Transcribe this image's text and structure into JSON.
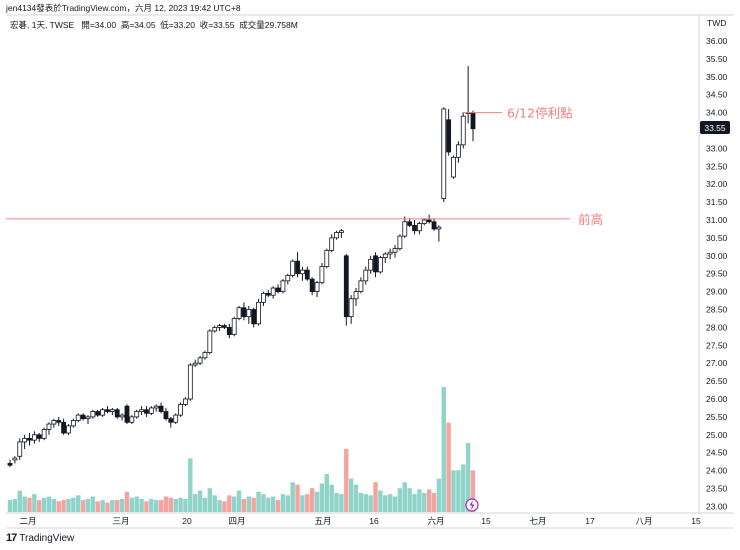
{
  "header": {
    "text": "jen4134發表於TradingView.com，六月 12, 2023 19:42 UTC+8"
  },
  "symbol": {
    "name": "宏碁, 1天, TWSE",
    "open": "開=34.00",
    "high": "高=34.05",
    "low": "低=33.20",
    "close": "收=33.55",
    "volume": "成交量29.758M"
  },
  "footer": {
    "logo": "17",
    "brand": "TradingView"
  },
  "colors": {
    "up": "#26a69a",
    "down": "#ef5350",
    "candle_up_fill": "#ffffff",
    "candle_down_fill": "#131722",
    "hline": "#f08080",
    "annot": "#f48080"
  },
  "chart_data": {
    "type": "candlestick",
    "currency": "TWD",
    "ylim": [
      22.9,
      36.4
    ],
    "y_ticks": [
      "36.00",
      "35.50",
      "35.00",
      "34.50",
      "34.00",
      "33.50",
      "33.00",
      "32.50",
      "32.00",
      "31.50",
      "31.00",
      "30.50",
      "30.00",
      "29.50",
      "29.00",
      "28.50",
      "28.00",
      "27.50",
      "27.00",
      "26.50",
      "26.00",
      "25.50",
      "25.00",
      "24.50",
      "24.00",
      "23.50",
      "23.00"
    ],
    "x_ticks": [
      "二月",
      "三月",
      "20",
      "四月",
      "五月",
      "16",
      "六月",
      "15",
      "七月",
      "17",
      "八月",
      "15"
    ],
    "last_price": "33.55",
    "annotations": [
      {
        "text": "6/12停利點",
        "price": 34.0
      },
      {
        "text": "前高",
        "price": 31.03
      }
    ],
    "hline": 31.03,
    "candles": [
      [
        24.2,
        24.3,
        24.1,
        24.15
      ],
      [
        24.3,
        24.4,
        24.2,
        24.35
      ],
      [
        24.4,
        24.9,
        24.3,
        24.8
      ],
      [
        24.8,
        25.0,
        24.6,
        24.9
      ],
      [
        24.9,
        25.05,
        24.7,
        24.85
      ],
      [
        24.85,
        25.1,
        24.75,
        25.0
      ],
      [
        25.0,
        25.05,
        24.8,
        24.9
      ],
      [
        24.9,
        25.2,
        24.85,
        25.15
      ],
      [
        25.15,
        25.35,
        25.0,
        25.3
      ],
      [
        25.3,
        25.45,
        25.2,
        25.4
      ],
      [
        25.4,
        25.5,
        25.25,
        25.35
      ],
      [
        25.35,
        25.45,
        25.0,
        25.05
      ],
      [
        25.05,
        25.3,
        25.0,
        25.25
      ],
      [
        25.25,
        25.45,
        25.2,
        25.4
      ],
      [
        25.4,
        25.6,
        25.35,
        25.55
      ],
      [
        25.55,
        25.6,
        25.4,
        25.45
      ],
      [
        25.45,
        25.55,
        25.3,
        25.5
      ],
      [
        25.5,
        25.7,
        25.45,
        25.65
      ],
      [
        25.65,
        25.7,
        25.5,
        25.55
      ],
      [
        25.55,
        25.75,
        25.5,
        25.7
      ],
      [
        25.7,
        25.8,
        25.6,
        25.65
      ],
      [
        25.65,
        25.75,
        25.55,
        25.7
      ],
      [
        25.7,
        25.75,
        25.45,
        25.5
      ],
      [
        25.5,
        25.6,
        25.4,
        25.55
      ],
      [
        25.8,
        25.85,
        25.3,
        25.35
      ],
      [
        25.35,
        25.55,
        25.3,
        25.5
      ],
      [
        25.5,
        25.7,
        25.45,
        25.65
      ],
      [
        25.65,
        25.8,
        25.55,
        25.7
      ],
      [
        25.7,
        25.8,
        25.5,
        25.6
      ],
      [
        25.6,
        25.8,
        25.55,
        25.75
      ],
      [
        25.75,
        25.85,
        25.65,
        25.8
      ],
      [
        25.8,
        25.9,
        25.6,
        25.65
      ],
      [
        25.65,
        25.75,
        25.4,
        25.45
      ],
      [
        25.45,
        25.5,
        25.2,
        25.35
      ],
      [
        25.35,
        25.6,
        25.3,
        25.55
      ],
      [
        25.55,
        25.9,
        25.5,
        25.85
      ],
      [
        25.85,
        26.05,
        25.8,
        26.0
      ],
      [
        26.0,
        27.0,
        25.95,
        26.95
      ],
      [
        26.95,
        27.1,
        26.9,
        27.0
      ],
      [
        27.0,
        27.2,
        26.95,
        27.15
      ],
      [
        27.15,
        27.35,
        27.1,
        27.3
      ],
      [
        27.3,
        27.95,
        27.25,
        27.9
      ],
      [
        27.9,
        28.05,
        27.85,
        28.0
      ],
      [
        28.0,
        28.1,
        27.9,
        28.05
      ],
      [
        28.05,
        28.1,
        27.95,
        28.0
      ],
      [
        28.0,
        28.1,
        27.7,
        27.8
      ],
      [
        27.8,
        28.3,
        27.75,
        28.25
      ],
      [
        28.25,
        28.6,
        28.2,
        28.55
      ],
      [
        28.55,
        28.7,
        28.2,
        28.3
      ],
      [
        28.3,
        28.6,
        28.1,
        28.5
      ],
      [
        28.5,
        28.55,
        28.0,
        28.1
      ],
      [
        28.1,
        28.8,
        28.05,
        28.7
      ],
      [
        28.7,
        29.0,
        28.6,
        28.95
      ],
      [
        28.95,
        29.05,
        28.85,
        28.9
      ],
      [
        28.9,
        29.15,
        28.8,
        29.1
      ],
      [
        29.1,
        29.2,
        28.95,
        29.0
      ],
      [
        29.0,
        29.35,
        28.95,
        29.3
      ],
      [
        29.3,
        29.5,
        29.2,
        29.45
      ],
      [
        29.45,
        29.9,
        29.4,
        29.85
      ],
      [
        29.85,
        30.1,
        29.4,
        29.5
      ],
      [
        29.5,
        29.7,
        29.3,
        29.6
      ],
      [
        29.6,
        29.7,
        29.3,
        29.35
      ],
      [
        29.35,
        29.4,
        28.9,
        29.0
      ],
      [
        29.0,
        29.3,
        28.85,
        29.25
      ],
      [
        29.25,
        29.8,
        29.2,
        29.7
      ],
      [
        29.7,
        30.2,
        29.65,
        30.15
      ],
      [
        30.15,
        30.6,
        30.1,
        30.5
      ],
      [
        30.5,
        30.7,
        30.45,
        30.65
      ],
      [
        30.65,
        30.75,
        30.5,
        30.7
      ],
      [
        30.0,
        30.05,
        28.05,
        28.3
      ],
      [
        28.3,
        28.9,
        28.1,
        28.8
      ],
      [
        28.8,
        29.1,
        28.6,
        29.0
      ],
      [
        29.0,
        29.4,
        28.95,
        29.3
      ],
      [
        29.3,
        29.7,
        29.2,
        29.6
      ],
      [
        29.6,
        30.0,
        29.5,
        29.9
      ],
      [
        30.0,
        30.1,
        29.4,
        29.55
      ],
      [
        29.55,
        30.0,
        29.5,
        29.95
      ],
      [
        29.95,
        30.1,
        29.8,
        30.05
      ],
      [
        30.05,
        30.2,
        29.9,
        30.1
      ],
      [
        30.1,
        30.3,
        29.95,
        30.2
      ],
      [
        30.2,
        30.6,
        30.15,
        30.55
      ],
      [
        30.55,
        31.1,
        30.5,
        30.95
      ],
      [
        30.95,
        31.05,
        30.8,
        30.85
      ],
      [
        30.85,
        31.0,
        30.6,
        30.7
      ],
      [
        30.7,
        30.95,
        30.6,
        30.9
      ],
      [
        30.9,
        31.05,
        30.85,
        31.0
      ],
      [
        31.0,
        31.15,
        30.9,
        30.95
      ],
      [
        30.95,
        31.05,
        30.7,
        30.75
      ],
      [
        30.75,
        30.85,
        30.4,
        30.8
      ],
      [
        31.6,
        34.15,
        31.5,
        34.1
      ],
      [
        33.8,
        34.1,
        32.8,
        32.9
      ],
      [
        32.2,
        32.8,
        32.15,
        32.75
      ],
      [
        32.75,
        33.2,
        32.6,
        33.1
      ],
      [
        33.1,
        34.0,
        33.0,
        33.9
      ],
      [
        34.0,
        35.3,
        33.7,
        34.0
      ],
      [
        34.0,
        34.05,
        33.2,
        33.55
      ]
    ],
    "volume": [
      [
        1.0,
        "up"
      ],
      [
        1.1,
        "up"
      ],
      [
        1.8,
        "up"
      ],
      [
        1.3,
        "up"
      ],
      [
        1.2,
        "down"
      ],
      [
        1.5,
        "up"
      ],
      [
        1.0,
        "down"
      ],
      [
        1.2,
        "up"
      ],
      [
        1.3,
        "up"
      ],
      [
        1.1,
        "up"
      ],
      [
        0.9,
        "down"
      ],
      [
        1.0,
        "down"
      ],
      [
        1.1,
        "up"
      ],
      [
        1.2,
        "up"
      ],
      [
        1.4,
        "up"
      ],
      [
        1.0,
        "down"
      ],
      [
        1.1,
        "up"
      ],
      [
        1.3,
        "up"
      ],
      [
        0.9,
        "down"
      ],
      [
        1.0,
        "up"
      ],
      [
        0.8,
        "down"
      ],
      [
        1.0,
        "up"
      ],
      [
        1.0,
        "down"
      ],
      [
        1.1,
        "up"
      ],
      [
        1.7,
        "down"
      ],
      [
        1.2,
        "up"
      ],
      [
        1.3,
        "up"
      ],
      [
        1.1,
        "up"
      ],
      [
        0.9,
        "down"
      ],
      [
        1.1,
        "up"
      ],
      [
        1.0,
        "up"
      ],
      [
        1.0,
        "down"
      ],
      [
        1.3,
        "down"
      ],
      [
        1.2,
        "down"
      ],
      [
        1.1,
        "up"
      ],
      [
        1.2,
        "up"
      ],
      [
        1.1,
        "up"
      ],
      [
        4.5,
        "up"
      ],
      [
        1.5,
        "up"
      ],
      [
        1.8,
        "up"
      ],
      [
        1.2,
        "up"
      ],
      [
        2.0,
        "up"
      ],
      [
        1.4,
        "up"
      ],
      [
        1.0,
        "up"
      ],
      [
        0.9,
        "down"
      ],
      [
        1.4,
        "down"
      ],
      [
        1.3,
        "up"
      ],
      [
        1.8,
        "up"
      ],
      [
        1.1,
        "down"
      ],
      [
        1.3,
        "up"
      ],
      [
        1.2,
        "down"
      ],
      [
        1.7,
        "up"
      ],
      [
        1.5,
        "up"
      ],
      [
        1.2,
        "up"
      ],
      [
        1.3,
        "up"
      ],
      [
        1.0,
        "down"
      ],
      [
        1.5,
        "up"
      ],
      [
        1.4,
        "up"
      ],
      [
        2.5,
        "up"
      ],
      [
        2.3,
        "down"
      ],
      [
        1.4,
        "up"
      ],
      [
        1.5,
        "down"
      ],
      [
        2.0,
        "down"
      ],
      [
        1.7,
        "up"
      ],
      [
        2.4,
        "up"
      ],
      [
        3.2,
        "up"
      ],
      [
        2.3,
        "up"
      ],
      [
        1.6,
        "up"
      ],
      [
        1.5,
        "up"
      ],
      [
        5.3,
        "down"
      ],
      [
        2.8,
        "up"
      ],
      [
        2.3,
        "up"
      ],
      [
        1.6,
        "up"
      ],
      [
        1.5,
        "up"
      ],
      [
        1.4,
        "up"
      ],
      [
        2.5,
        "down"
      ],
      [
        1.8,
        "up"
      ],
      [
        1.4,
        "up"
      ],
      [
        1.5,
        "up"
      ],
      [
        1.3,
        "up"
      ],
      [
        2.0,
        "up"
      ],
      [
        2.5,
        "up"
      ],
      [
        2.0,
        "up"
      ],
      [
        1.5,
        "up"
      ],
      [
        1.9,
        "up"
      ],
      [
        1.6,
        "up"
      ],
      [
        1.9,
        "down"
      ],
      [
        1.6,
        "down"
      ],
      [
        2.8,
        "up"
      ],
      [
        10.5,
        "up"
      ],
      [
        7.5,
        "down"
      ],
      [
        3.5,
        "up"
      ],
      [
        3.5,
        "up"
      ],
      [
        4.0,
        "up"
      ],
      [
        5.8,
        "up"
      ],
      [
        3.5,
        "down"
      ]
    ]
  }
}
